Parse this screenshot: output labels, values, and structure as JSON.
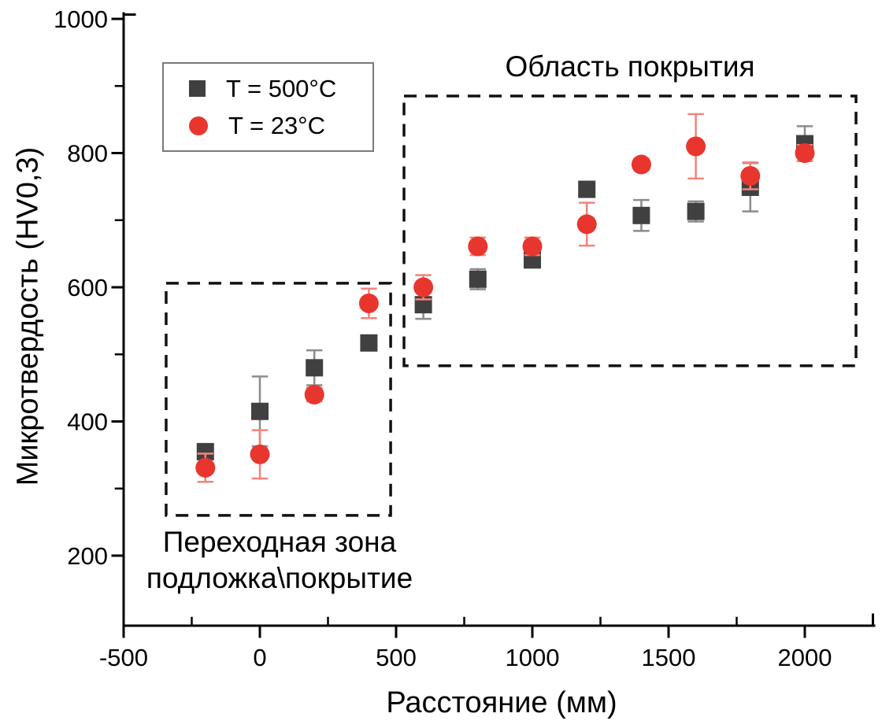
{
  "chart_data": {
    "type": "scatter",
    "title": "",
    "xlabel": "Расстояние (мм)",
    "ylabel": "Микротвердость (HV0,3)",
    "xlim": [
      -500,
      2254
    ],
    "ylim": [
      96,
      1008
    ],
    "grid": false,
    "legend_position": "top-left",
    "x_major_ticks": [
      -500,
      0,
      500,
      1000,
      1500,
      2000
    ],
    "x_minor_ticks": [
      -250,
      250,
      750,
      1250,
      1750
    ],
    "y_major_ticks": [
      200,
      400,
      600,
      800,
      1000
    ],
    "y_minor_ticks": [
      300,
      500,
      700,
      900
    ],
    "series": [
      {
        "name": "T = 500°C",
        "marker": "square",
        "color": "#404040",
        "error_color": "#8c8c8c",
        "x": [
          -200,
          0,
          200,
          400,
          600,
          800,
          1000,
          1200,
          1400,
          1600,
          1800,
          2000
        ],
        "y": [
          355,
          415,
          480,
          517,
          574,
          612,
          641,
          746,
          707,
          713,
          749,
          814
        ],
        "yerr": [
          7,
          52,
          26,
          8,
          21,
          15,
          12,
          5,
          23,
          15,
          36,
          26
        ]
      },
      {
        "name": "T = 23°C",
        "marker": "circle",
        "color": "#e8362e",
        "error_color": "#f2837c",
        "x": [
          -200,
          0,
          200,
          400,
          600,
          800,
          1000,
          1200,
          1400,
          1600,
          1800,
          2000
        ],
        "y": [
          331,
          351,
          440,
          576,
          600,
          661,
          661,
          694,
          783,
          810,
          766,
          800
        ],
        "yerr": [
          21,
          36,
          10,
          22,
          18,
          13,
          13,
          32,
          8,
          48,
          20,
          12
        ]
      }
    ],
    "annotations": {
      "coating_label": "Область покрытия",
      "transition_line1": "Переходная зона",
      "transition_line2": "подложка\\покрытие"
    },
    "boxes": [
      {
        "name": "transition-zone-box",
        "x": [
          -344,
          480
        ],
        "y": [
          260,
          606
        ]
      },
      {
        "name": "coating-region-box",
        "x": [
          529,
          2188
        ],
        "y": [
          483,
          885
        ]
      }
    ]
  }
}
